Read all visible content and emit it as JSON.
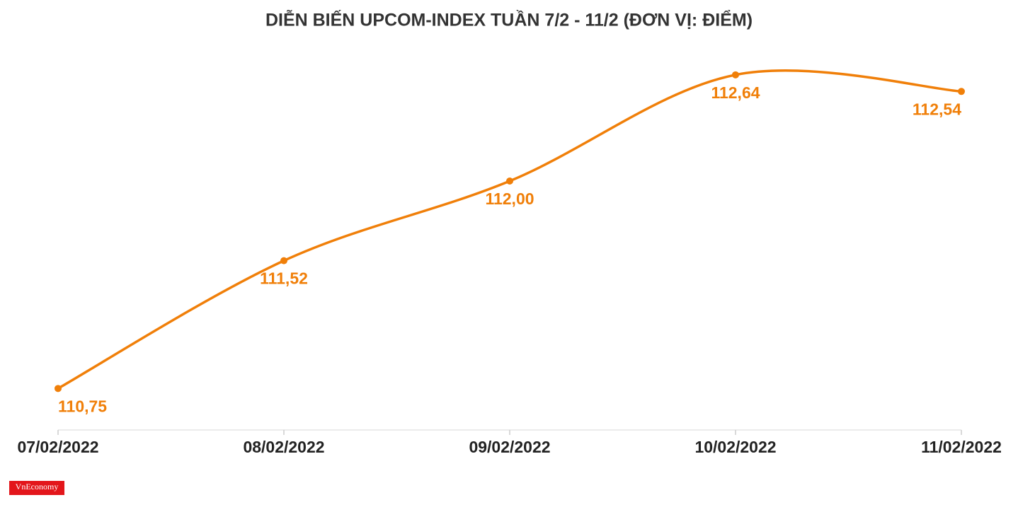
{
  "chart_data": {
    "type": "line",
    "title": "DIỄN BIẾN UPCOM-INDEX TUẦN 7/2 - 11/2 (ĐƠN VỊ: ĐIỂM)",
    "categories": [
      "07/02/2022",
      "08/02/2022",
      "09/02/2022",
      "10/02/2022",
      "11/02/2022"
    ],
    "series": [
      {
        "name": "UPCOM-Index",
        "color": "#f07f09",
        "values": [
          110.75,
          111.52,
          112.0,
          112.64,
          112.54
        ],
        "value_labels": [
          "110,75",
          "111,52",
          "112,00",
          "112,64",
          "112,54"
        ]
      }
    ],
    "ylim": [
      110.5,
      112.75
    ],
    "grid": false,
    "logo": "VnEconomy"
  }
}
